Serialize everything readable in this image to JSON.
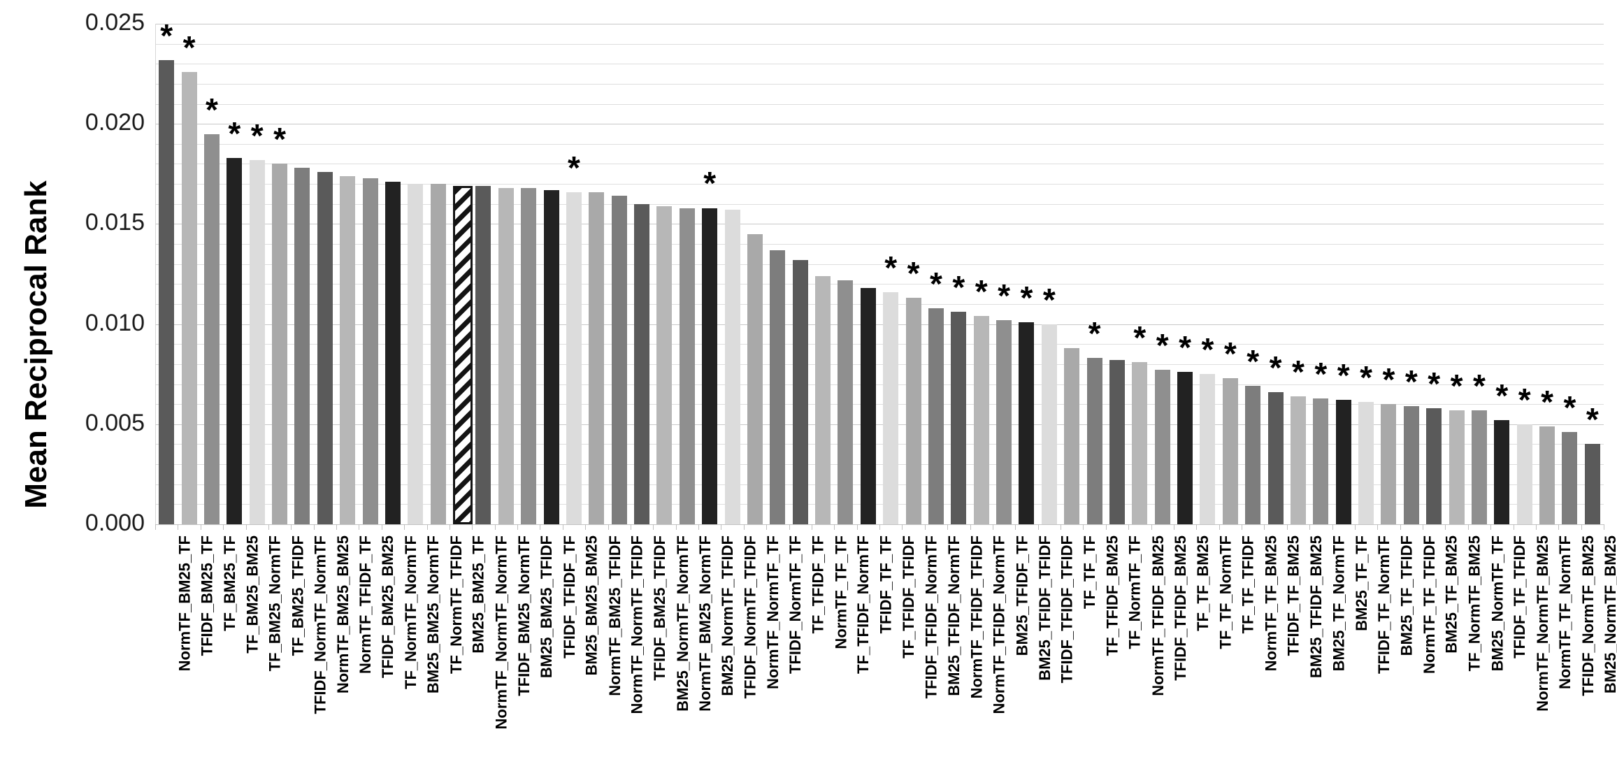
{
  "chart_data": {
    "type": "bar",
    "title": "",
    "xlabel": "",
    "ylabel": "Mean Reciprocal Rank",
    "ylim": [
      0,
      0.025
    ],
    "yticks": [
      0,
      0.005,
      0.01,
      0.015,
      0.02,
      0.025
    ],
    "ytick_labels": [
      "0.000",
      "0.005",
      "0.010",
      "0.015",
      "0.020",
      "0.025"
    ],
    "minor_gridline_step": 0.001,
    "grid": true,
    "legend_position": "none",
    "significance_marker": "*",
    "pattern_bar": "BM25_BM25_TF",
    "colors": {
      "bar_cycle": [
        "#5a5a5a",
        "#b7b7b7",
        "#8f8f8f",
        "#222222",
        "#dcdcdc",
        "#a9a9a9",
        "#7d7d7d"
      ],
      "hatch_fill": "#ffffff",
      "hatch_stripe": "#141414",
      "grid_minor": "#dedede",
      "grid_major": "#c8c8c8",
      "axis_line": "#c2c2c2",
      "text": "#000000"
    },
    "bars": [
      {
        "label": "NormTF_BM25_TF",
        "value": 0.0232,
        "star": true
      },
      {
        "label": "TFIDF_BM25_TF",
        "value": 0.0226,
        "star": true
      },
      {
        "label": "TF_BM25_TF",
        "value": 0.0195,
        "star": true
      },
      {
        "label": "TF_BM25_BM25",
        "value": 0.0183,
        "star": true
      },
      {
        "label": "TF_BM25_NormTF",
        "value": 0.0182,
        "star": true
      },
      {
        "label": "TF_BM25_TFIDF",
        "value": 0.018,
        "star": true
      },
      {
        "label": "TFIDF_NormTF_NormTF",
        "value": 0.0178,
        "star": false
      },
      {
        "label": "NormTF_BM25_BM25",
        "value": 0.0176,
        "star": false
      },
      {
        "label": "NormTF_TFIDF_TF",
        "value": 0.0174,
        "star": false
      },
      {
        "label": "TFIDF_BM25_BM25",
        "value": 0.0173,
        "star": false
      },
      {
        "label": "TF_NormTF_NormTF",
        "value": 0.0171,
        "star": false
      },
      {
        "label": "BM25_BM25_NormTF",
        "value": 0.017,
        "star": false
      },
      {
        "label": "TF_NormTF_TFIDF",
        "value": 0.017,
        "star": false
      },
      {
        "label": "BM25_BM25_TF",
        "value": 0.0169,
        "star": false
      },
      {
        "label": "NormTF_NormTF_NormTF",
        "value": 0.0169,
        "star": false
      },
      {
        "label": "TFIDF_BM25_NormTF",
        "value": 0.0168,
        "star": false
      },
      {
        "label": "BM25_BM25_TFIDF",
        "value": 0.0168,
        "star": false
      },
      {
        "label": "TFIDF_TFIDF_TF",
        "value": 0.0167,
        "star": false
      },
      {
        "label": "BM25_BM25_BM25",
        "value": 0.0166,
        "star": true
      },
      {
        "label": "NormTF_BM25_TFIDF",
        "value": 0.0166,
        "star": false
      },
      {
        "label": "NormTF_NormTF_TFIDF",
        "value": 0.0164,
        "star": false
      },
      {
        "label": "TFIDF_BM25_TFIDF",
        "value": 0.016,
        "star": false
      },
      {
        "label": "BM25_NormTF_NormTF",
        "value": 0.0159,
        "star": false
      },
      {
        "label": "NormTF_BM25_NormTF",
        "value": 0.0158,
        "star": false
      },
      {
        "label": "BM25_NormTF_TFIDF",
        "value": 0.0158,
        "star": true
      },
      {
        "label": "TFIDF_NormTF_TFIDF",
        "value": 0.0157,
        "star": false
      },
      {
        "label": "NormTF_NormTF_TF",
        "value": 0.0145,
        "star": false
      },
      {
        "label": "TFIDF_NormTF_TF",
        "value": 0.0137,
        "star": false
      },
      {
        "label": "TF_TFIDF_TF",
        "value": 0.0132,
        "star": false
      },
      {
        "label": "NormTF_TF_TF",
        "value": 0.0124,
        "star": false
      },
      {
        "label": "TF_TFIDF_NormTF",
        "value": 0.0122,
        "star": false
      },
      {
        "label": "TFIDF_TF_TF",
        "value": 0.0118,
        "star": false
      },
      {
        "label": "TF_TFIDF_TFIDF",
        "value": 0.0116,
        "star": true
      },
      {
        "label": "TFIDF_TFIDF_NormTF",
        "value": 0.0113,
        "star": true
      },
      {
        "label": "BM25_TFIDF_NormTF",
        "value": 0.0108,
        "star": true
      },
      {
        "label": "NormTF_TFIDF_TFIDF",
        "value": 0.0106,
        "star": true
      },
      {
        "label": "NormTF_TFIDF_NormTF",
        "value": 0.0104,
        "star": true
      },
      {
        "label": "BM25_TFIDF_TF",
        "value": 0.0102,
        "star": true
      },
      {
        "label": "BM25_TFIDF_TFIDF",
        "value": 0.0101,
        "star": true
      },
      {
        "label": "TFIDF_TFIDF_TFIDF",
        "value": 0.01,
        "star": true
      },
      {
        "label": "TF_TF_TF",
        "value": 0.0088,
        "star": false
      },
      {
        "label": "TF_TFIDF_BM25",
        "value": 0.0083,
        "star": true
      },
      {
        "label": "TF_NormTF_TF",
        "value": 0.0082,
        "star": false
      },
      {
        "label": "NormTF_TFIDF_BM25",
        "value": 0.0081,
        "star": true
      },
      {
        "label": "TFIDF_TFIDF_BM25",
        "value": 0.0077,
        "star": true
      },
      {
        "label": "TF_TF_BM25",
        "value": 0.0076,
        "star": true
      },
      {
        "label": "TF_TF_NormTF",
        "value": 0.0075,
        "star": true
      },
      {
        "label": "TF_TF_TFIDF",
        "value": 0.0073,
        "star": true
      },
      {
        "label": "NormTF_TF_BM25",
        "value": 0.0069,
        "star": true
      },
      {
        "label": "TFIDF_TF_BM25",
        "value": 0.0066,
        "star": true
      },
      {
        "label": "BM25_TFIDF_BM25",
        "value": 0.0064,
        "star": true
      },
      {
        "label": "BM25_TF_NormTF",
        "value": 0.0063,
        "star": true
      },
      {
        "label": "BM25_TF_TF",
        "value": 0.0062,
        "star": true
      },
      {
        "label": "TFIDF_TF_NormTF",
        "value": 0.0061,
        "star": true
      },
      {
        "label": "BM25_TF_TFIDF",
        "value": 0.006,
        "star": true
      },
      {
        "label": "NormTF_TF_TFIDF",
        "value": 0.0059,
        "star": true
      },
      {
        "label": "BM25_TF_BM25",
        "value": 0.0058,
        "star": true
      },
      {
        "label": "TF_NormTF_BM25",
        "value": 0.0057,
        "star": true
      },
      {
        "label": "BM25_NormTF_TF",
        "value": 0.0057,
        "star": true
      },
      {
        "label": "TFIDF_TF_TFIDF",
        "value": 0.0052,
        "star": true
      },
      {
        "label": "NormTF_NormTF_BM25",
        "value": 0.005,
        "star": true
      },
      {
        "label": "NormTF_TF_NormTF",
        "value": 0.0049,
        "star": true
      },
      {
        "label": "TFIDF_NormTF_BM25",
        "value": 0.0046,
        "star": true
      },
      {
        "label": "BM25_NormTF_BM25",
        "value": 0.004,
        "star": true
      }
    ]
  }
}
